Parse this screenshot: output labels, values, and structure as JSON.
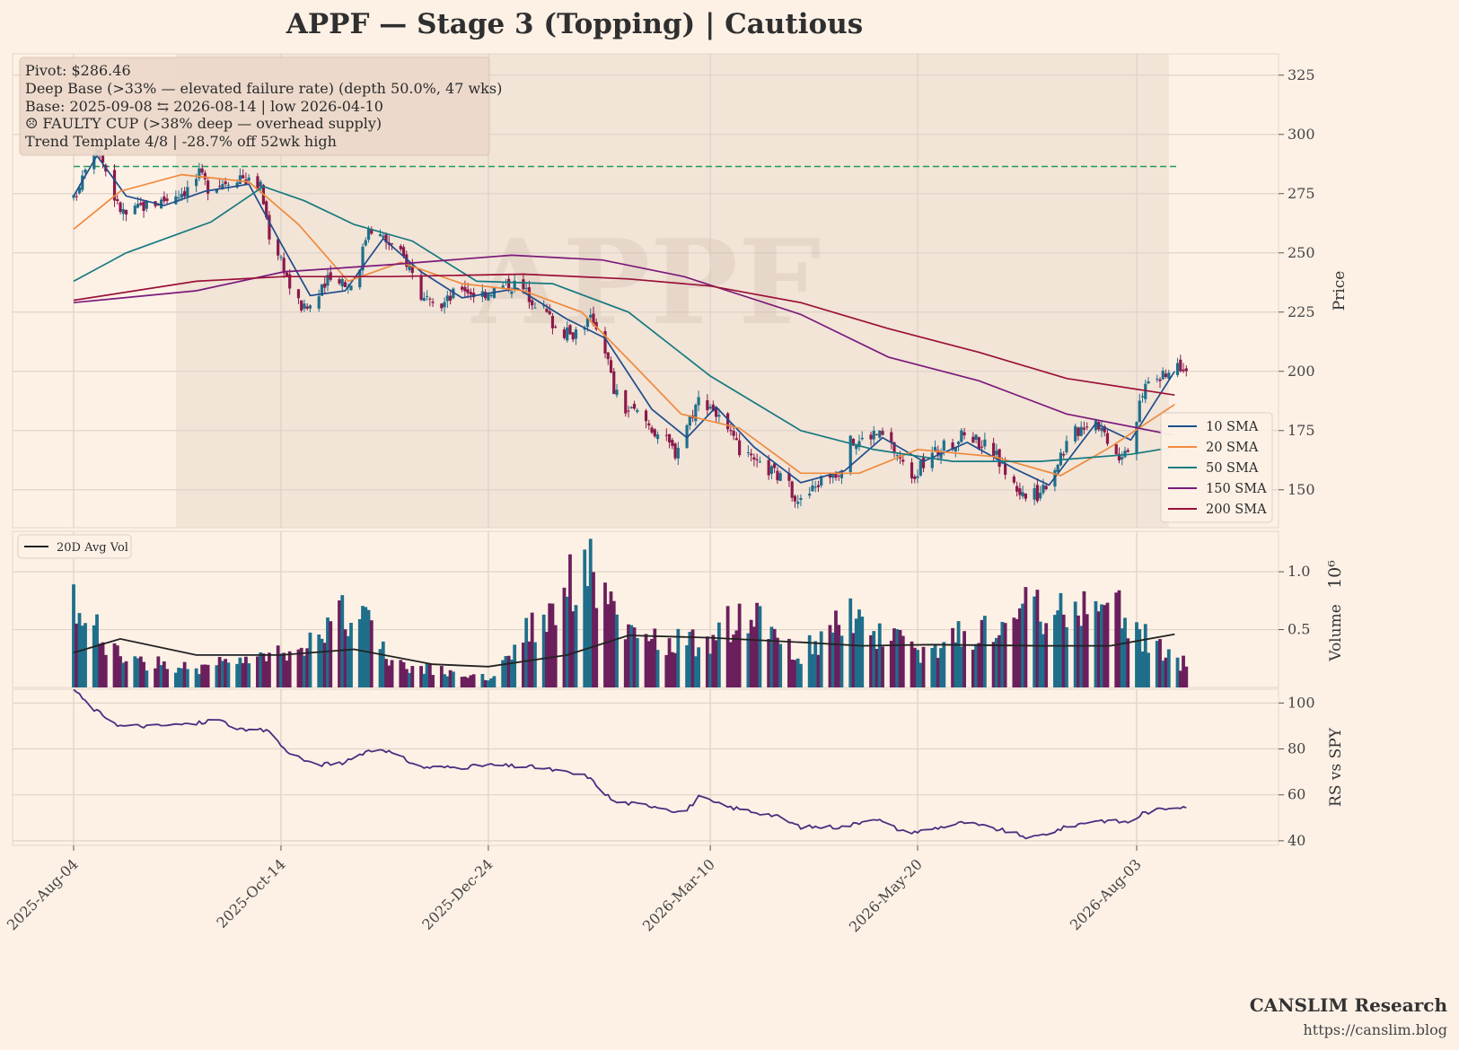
{
  "title": "APPF  —  Stage 3 (Topping)  |  Cautious",
  "watermark": "APPF",
  "annotations": [
    "Pivot: $286.46",
    "Deep Base (>33% — elevated failure rate)  (depth 50.0%, 47 wks)",
    "Base: 2025-09-08 ⇆ 2026-08-14  |  low 2026-04-10",
    "☹ FAULTY CUP (>38% deep — overhead supply)",
    "Trend Template 4/8  |  -28.7% off 52wk high"
  ],
  "footer": {
    "brand": "CANSLIM Research",
    "url": "https://canslim.blog"
  },
  "colors": {
    "background": "#fdf1e6",
    "base_shade": "#ead8cb",
    "up_candle": "#1f6f8b",
    "down_candle": "#8b1a4b",
    "pivot_line": "#1e9e5a",
    "sma10": "#1f4e8c",
    "sma20": "#f08a3c",
    "sma50": "#177a80",
    "sma150": "#7b1a7b",
    "sma200": "#9b1038",
    "volume_up": "#1f6f8b",
    "volume_down": "#6b1f5c",
    "avg_vol": "#222222",
    "rs_line": "#4b2d7f"
  },
  "chart_data": [
    {
      "type": "candlestick",
      "panel": "price",
      "ylabel": "Price",
      "y_ticks": [
        150,
        175,
        200,
        225,
        250,
        275,
        300,
        325
      ],
      "ylim": [
        134,
        334
      ],
      "x_ticks": [
        "2025-Aug-04",
        "2025-Oct-14",
        "2025-Dec-24",
        "2026-Mar-10",
        "2026-May-20",
        "2026-Aug-03"
      ],
      "x_range": [
        "2025-08-04",
        "2026-08-20"
      ],
      "pivot": 286.46,
      "base_range": [
        "2025-09-08",
        "2026-08-14"
      ],
      "legend": {
        "position": "lower-right",
        "entries": [
          "10 SMA",
          "20 SMA",
          "50 SMA",
          "150 SMA",
          "200 SMA"
        ]
      },
      "price_close_path": [
        [
          "2025-08-04",
          272
        ],
        [
          "2025-08-08",
          288
        ],
        [
          "2025-08-12",
          296
        ],
        [
          "2025-08-15",
          285
        ],
        [
          "2025-08-19",
          270
        ],
        [
          "2025-08-22",
          266
        ],
        [
          "2025-08-28",
          270
        ],
        [
          "2025-09-03",
          272
        ],
        [
          "2025-09-08",
          275
        ],
        [
          "2025-09-12",
          277
        ],
        [
          "2025-09-16",
          283
        ],
        [
          "2025-09-19",
          278
        ],
        [
          "2025-09-24",
          280
        ],
        [
          "2025-09-30",
          283
        ],
        [
          "2025-10-03",
          280
        ],
        [
          "2025-10-07",
          278
        ],
        [
          "2025-10-10",
          258
        ],
        [
          "2025-10-14",
          248
        ],
        [
          "2025-10-18",
          232
        ],
        [
          "2025-10-22",
          226
        ],
        [
          "2025-10-26",
          230
        ],
        [
          "2025-10-30",
          238
        ],
        [
          "2025-11-03",
          240
        ],
        [
          "2025-11-06",
          236
        ],
        [
          "2025-11-09",
          240
        ],
        [
          "2025-11-13",
          262
        ],
        [
          "2025-11-17",
          257
        ],
        [
          "2025-11-22",
          252
        ],
        [
          "2025-11-27",
          245
        ],
        [
          "2025-12-01",
          232
        ],
        [
          "2025-12-05",
          226
        ],
        [
          "2025-12-10",
          230
        ],
        [
          "2025-12-15",
          236
        ],
        [
          "2025-12-20",
          232
        ],
        [
          "2025-12-24",
          234
        ],
        [
          "2025-12-29",
          236
        ],
        [
          "2026-01-03",
          237
        ],
        [
          "2026-01-07",
          232
        ],
        [
          "2026-01-12",
          226
        ],
        [
          "2026-01-16",
          219
        ],
        [
          "2026-01-21",
          215
        ],
        [
          "2026-01-25",
          220
        ],
        [
          "2026-01-29",
          222
        ],
        [
          "2026-02-02",
          210
        ],
        [
          "2026-02-05",
          192
        ],
        [
          "2026-02-09",
          184
        ],
        [
          "2026-02-14",
          182
        ],
        [
          "2026-02-18",
          176
        ],
        [
          "2026-02-22",
          172
        ],
        [
          "2026-02-26",
          166
        ],
        [
          "2026-03-02",
          178
        ],
        [
          "2026-03-06",
          188
        ],
        [
          "2026-03-10",
          186
        ],
        [
          "2026-03-14",
          178
        ],
        [
          "2026-03-18",
          170
        ],
        [
          "2026-03-22",
          164
        ],
        [
          "2026-03-26",
          160
        ],
        [
          "2026-03-31",
          158
        ],
        [
          "2026-04-04",
          154
        ],
        [
          "2026-04-10",
          145
        ],
        [
          "2026-04-14",
          150
        ],
        [
          "2026-04-18",
          156
        ],
        [
          "2026-04-23",
          158
        ],
        [
          "2026-04-27",
          170
        ],
        [
          "2026-05-01",
          171
        ],
        [
          "2026-05-05",
          174
        ],
        [
          "2026-05-09",
          172
        ],
        [
          "2026-05-13",
          165
        ],
        [
          "2026-05-17",
          156
        ],
        [
          "2026-05-20",
          158
        ],
        [
          "2026-05-25",
          165
        ],
        [
          "2026-05-29",
          168
        ],
        [
          "2026-06-02",
          170
        ],
        [
          "2026-06-06",
          175
        ],
        [
          "2026-06-10",
          170
        ],
        [
          "2026-06-14",
          168
        ],
        [
          "2026-06-18",
          160
        ],
        [
          "2026-06-22",
          152
        ],
        [
          "2026-06-26",
          147
        ],
        [
          "2026-06-30",
          148
        ],
        [
          "2026-07-04",
          155
        ],
        [
          "2026-07-08",
          165
        ],
        [
          "2026-07-12",
          173
        ],
        [
          "2026-07-16",
          178
        ],
        [
          "2026-07-20",
          180
        ],
        [
          "2026-07-24",
          172
        ],
        [
          "2026-07-28",
          165
        ],
        [
          "2026-08-01",
          170
        ],
        [
          "2026-08-04",
          185
        ],
        [
          "2026-08-07",
          198
        ],
        [
          "2026-08-10",
          196
        ],
        [
          "2026-08-13",
          198
        ],
        [
          "2026-08-16",
          203
        ]
      ],
      "sma_paths": {
        "10 SMA": [
          [
            "2025-08-04",
            274
          ],
          [
            "2025-08-12",
            291
          ],
          [
            "2025-08-22",
            274
          ],
          [
            "2025-09-04",
            270
          ],
          [
            "2025-09-18",
            276
          ],
          [
            "2025-10-03",
            279
          ],
          [
            "2025-10-14",
            254
          ],
          [
            "2025-10-24",
            232
          ],
          [
            "2025-11-05",
            234
          ],
          [
            "2025-11-18",
            256
          ],
          [
            "2025-12-01",
            242
          ],
          [
            "2025-12-15",
            231
          ],
          [
            "2026-01-03",
            235
          ],
          [
            "2026-01-20",
            222
          ],
          [
            "2026-02-02",
            214
          ],
          [
            "2026-02-18",
            184
          ],
          [
            "2026-03-02",
            172
          ],
          [
            "2026-03-12",
            185
          ],
          [
            "2026-03-25",
            168
          ],
          [
            "2026-04-10",
            153
          ],
          [
            "2026-04-25",
            158
          ],
          [
            "2026-05-08",
            172
          ],
          [
            "2026-05-22",
            162
          ],
          [
            "2026-06-06",
            170
          ],
          [
            "2026-06-22",
            159
          ],
          [
            "2026-07-04",
            152
          ],
          [
            "2026-07-20",
            178
          ],
          [
            "2026-08-01",
            171
          ],
          [
            "2026-08-16",
            200
          ]
        ],
        "20 SMA": [
          [
            "2025-08-04",
            260
          ],
          [
            "2025-08-20",
            276
          ],
          [
            "2025-09-10",
            283
          ],
          [
            "2025-10-03",
            280
          ],
          [
            "2025-10-20",
            262
          ],
          [
            "2025-11-06",
            238
          ],
          [
            "2025-11-24",
            246
          ],
          [
            "2025-12-15",
            237
          ],
          [
            "2026-01-05",
            234
          ],
          [
            "2026-01-25",
            225
          ],
          [
            "2026-02-10",
            205
          ],
          [
            "2026-02-28",
            182
          ],
          [
            "2026-03-20",
            176
          ],
          [
            "2026-04-10",
            157
          ],
          [
            "2026-04-30",
            157
          ],
          [
            "2026-05-20",
            167
          ],
          [
            "2026-06-15",
            164
          ],
          [
            "2026-07-08",
            156
          ],
          [
            "2026-07-25",
            168
          ],
          [
            "2026-08-16",
            186
          ]
        ],
        "50 SMA": [
          [
            "2025-08-04",
            238
          ],
          [
            "2025-08-22",
            250
          ],
          [
            "2025-09-20",
            263
          ],
          [
            "2025-10-08",
            278
          ],
          [
            "2025-10-22",
            272
          ],
          [
            "2025-11-08",
            262
          ],
          [
            "2025-11-28",
            255
          ],
          [
            "2025-12-20",
            238
          ],
          [
            "2026-01-15",
            237
          ],
          [
            "2026-02-10",
            225
          ],
          [
            "2026-03-10",
            198
          ],
          [
            "2026-04-10",
            175
          ],
          [
            "2026-05-05",
            167
          ],
          [
            "2026-06-01",
            162
          ],
          [
            "2026-07-01",
            162
          ],
          [
            "2026-08-01",
            165
          ],
          [
            "2026-08-16",
            168
          ]
        ],
        "150 SMA": [
          [
            "2025-08-04",
            229
          ],
          [
            "2025-09-15",
            234
          ],
          [
            "2025-10-15",
            242
          ],
          [
            "2025-11-20",
            245
          ],
          [
            "2026-01-01",
            249
          ],
          [
            "2026-02-01",
            247
          ],
          [
            "2026-03-01",
            240
          ],
          [
            "2026-04-10",
            224
          ],
          [
            "2026-05-10",
            206
          ],
          [
            "2026-06-10",
            196
          ],
          [
            "2026-07-10",
            182
          ],
          [
            "2026-08-16",
            173
          ]
        ],
        "200 SMA": [
          [
            "2025-08-04",
            230
          ],
          [
            "2025-09-15",
            238
          ],
          [
            "2025-10-15",
            240
          ],
          [
            "2025-11-20",
            240
          ],
          [
            "2026-01-05",
            241
          ],
          [
            "2026-02-10",
            239
          ],
          [
            "2026-03-10",
            236
          ],
          [
            "2026-04-10",
            229
          ],
          [
            "2026-05-10",
            218
          ],
          [
            "2026-06-10",
            208
          ],
          [
            "2026-07-10",
            197
          ],
          [
            "2026-08-16",
            190
          ]
        ]
      }
    },
    {
      "type": "bar",
      "panel": "volume",
      "ylabel": "Volume",
      "y_scale_label": "10⁶",
      "y_ticks": [
        0.5,
        1.0
      ],
      "ylim": [
        0,
        1.35
      ],
      "legend": {
        "position": "upper-left",
        "entries": [
          "20D Avg Vol"
        ]
      },
      "volume_levels": [
        [
          "2025-08-04",
          0.85
        ],
        [
          "2025-08-20",
          0.3
        ],
        [
          "2025-09-15",
          0.2
        ],
        [
          "2025-10-14",
          0.35
        ],
        [
          "2025-11-10",
          0.85
        ],
        [
          "2025-11-20",
          0.25
        ],
        [
          "2025-12-24",
          0.1
        ],
        [
          "2026-01-27",
          1.3
        ],
        [
          "2026-02-10",
          0.5
        ],
        [
          "2026-03-10",
          0.45
        ],
        [
          "2026-03-20",
          0.8
        ],
        [
          "2026-04-10",
          0.35
        ],
        [
          "2026-04-28",
          0.75
        ],
        [
          "2026-05-20",
          0.35
        ],
        [
          "2026-06-25",
          0.8
        ],
        [
          "2026-07-24",
          0.9
        ],
        [
          "2026-08-16",
          0.25
        ]
      ],
      "avg_volume_path": [
        [
          "2025-08-04",
          0.3
        ],
        [
          "2025-08-20",
          0.42
        ],
        [
          "2025-09-15",
          0.28
        ],
        [
          "2025-10-14",
          0.28
        ],
        [
          "2025-11-08",
          0.33
        ],
        [
          "2025-12-05",
          0.2
        ],
        [
          "2025-12-24",
          0.18
        ],
        [
          "2026-01-20",
          0.28
        ],
        [
          "2026-02-10",
          0.45
        ],
        [
          "2026-03-10",
          0.43
        ],
        [
          "2026-04-10",
          0.39
        ],
        [
          "2026-05-01",
          0.36
        ],
        [
          "2026-05-25",
          0.37
        ],
        [
          "2026-07-01",
          0.36
        ],
        [
          "2026-07-25",
          0.36
        ],
        [
          "2026-08-16",
          0.46
        ]
      ]
    },
    {
      "type": "line",
      "panel": "rs",
      "ylabel": "RS vs SPY",
      "y_ticks": [
        40,
        60,
        80,
        100
      ],
      "ylim": [
        38,
        106
      ],
      "series": [
        {
          "values": [
            [
              "2025-08-04",
              106
            ],
            [
              "2025-08-10",
              98
            ],
            [
              "2025-08-20",
              90
            ],
            [
              "2025-09-01",
              90
            ],
            [
              "2025-09-15",
              91
            ],
            [
              "2025-09-22",
              93
            ],
            [
              "2025-10-01",
              88
            ],
            [
              "2025-10-10",
              88
            ],
            [
              "2025-10-15",
              80
            ],
            [
              "2025-10-25",
              73
            ],
            [
              "2025-11-05",
              74
            ],
            [
              "2025-11-12",
              79
            ],
            [
              "2025-11-18",
              80
            ],
            [
              "2025-12-01",
              72
            ],
            [
              "2025-12-15",
              72
            ],
            [
              "2025-12-24",
              73
            ],
            [
              "2026-01-10",
              72
            ],
            [
              "2026-01-27",
              68
            ],
            [
              "2026-02-05",
              57
            ],
            [
              "2026-02-20",
              55
            ],
            [
              "2026-03-01",
              52
            ],
            [
              "2026-03-06",
              59
            ],
            [
              "2026-03-15",
              55
            ],
            [
              "2026-04-01",
              51
            ],
            [
              "2026-04-10",
              46
            ],
            [
              "2026-04-25",
              46
            ],
            [
              "2026-05-05",
              50
            ],
            [
              "2026-05-15",
              44
            ],
            [
              "2026-05-20",
              44
            ],
            [
              "2026-06-05",
              48
            ],
            [
              "2026-06-20",
              44
            ],
            [
              "2026-06-28",
              41
            ],
            [
              "2026-07-10",
              46
            ],
            [
              "2026-07-20",
              49
            ],
            [
              "2026-08-01",
              48
            ],
            [
              "2026-08-05",
              52
            ],
            [
              "2026-08-16",
              55
            ]
          ]
        }
      ]
    }
  ]
}
